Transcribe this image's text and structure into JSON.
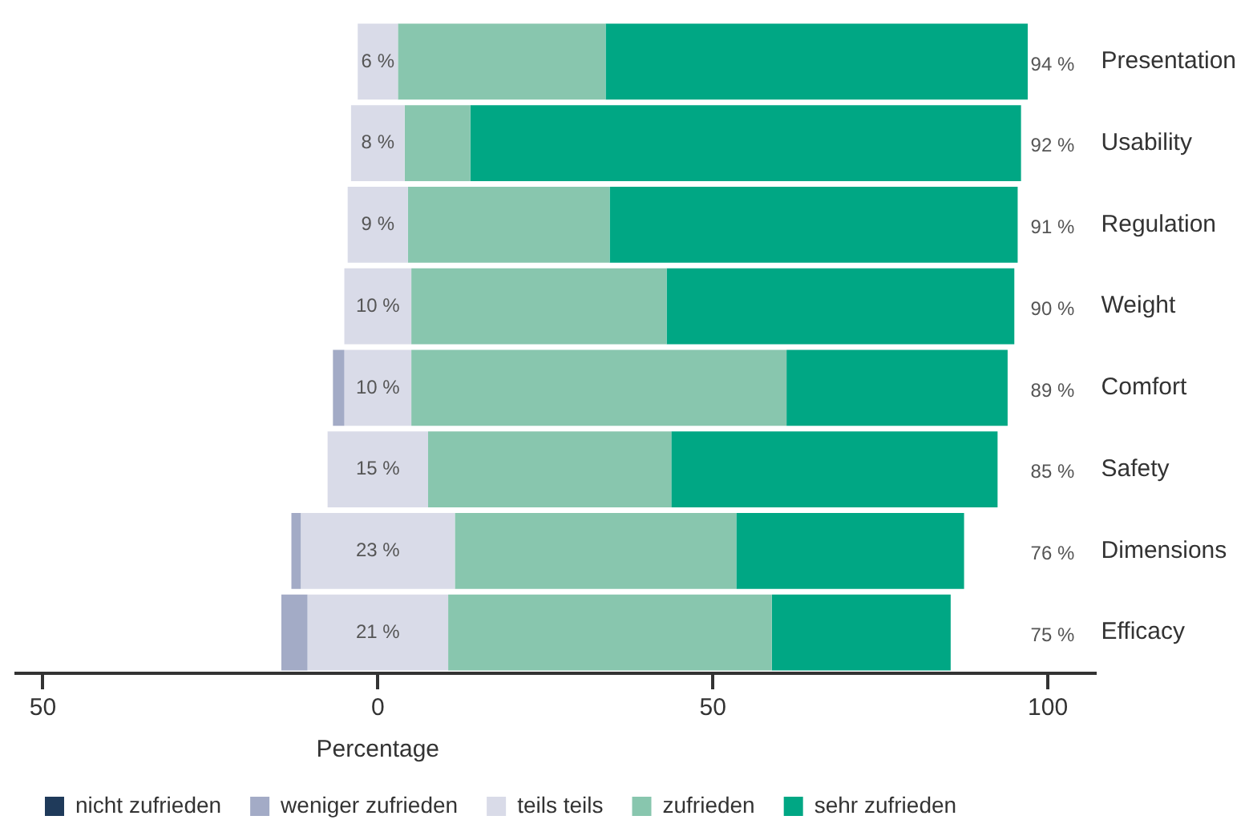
{
  "chart_data": {
    "type": "bar",
    "orientation": "horizontal",
    "xlabel": "Percentage",
    "categories": [
      "Presentation",
      "Usability",
      "Regulation",
      "Weight",
      "Comfort",
      "Safety",
      "Dimensions",
      "Efficacy"
    ],
    "xlim": [
      -54,
      107
    ],
    "xticks": [
      {
        "value": -50,
        "label": "50"
      },
      0,
      50,
      100
    ],
    "series": [
      {
        "name": "nicht zufrieden",
        "color": "#1f3a5a",
        "values": [
          null,
          null,
          null,
          null,
          null,
          null,
          null,
          null
        ],
        "base": [
          null,
          null,
          null,
          null,
          null,
          null,
          null,
          null
        ]
      },
      {
        "name": "weniger zufrieden",
        "color": "#a3abc6",
        "values": [
          null,
          null,
          null,
          null,
          1.7,
          null,
          1.4,
          3.9
        ],
        "base": [
          null,
          null,
          null,
          null,
          -6.7,
          null,
          -12.9,
          -14.4
        ]
      },
      {
        "name": "teils teils",
        "color": "#d9dbe8",
        "values": [
          6,
          8,
          9,
          10,
          10,
          15,
          23,
          21
        ],
        "base": [
          -3,
          -4,
          -4.5,
          -5,
          -5,
          -7.5,
          -11.5,
          -10.5
        ],
        "value_labels": [
          "6 %",
          "8 %",
          "9 %",
          "10 %",
          "10 %",
          "15 %",
          "23 %",
          "21 %"
        ]
      },
      {
        "name": "zufrieden",
        "color": "#88c6ae",
        "values": [
          31,
          9.8,
          30.1,
          38.1,
          56,
          36.3,
          42,
          48.3
        ],
        "base": [
          3,
          4,
          4.5,
          5,
          5,
          7.5,
          11.5,
          10.5
        ]
      },
      {
        "name": "sehr zufrieden",
        "color": "#00a784",
        "values": [
          63,
          82.2,
          60.9,
          51.9,
          33,
          48.7,
          34,
          26.7
        ],
        "base": [
          34,
          13.8,
          34.6,
          43.1,
          61,
          43.8,
          53.5,
          58.8
        ]
      }
    ],
    "annotations": [
      "94 %",
      "92 %",
      "91 %",
      "90 %",
      "89 %",
      "85 %",
      "76 %",
      "75 %"
    ],
    "legend": "bottom left",
    "grid": false
  }
}
